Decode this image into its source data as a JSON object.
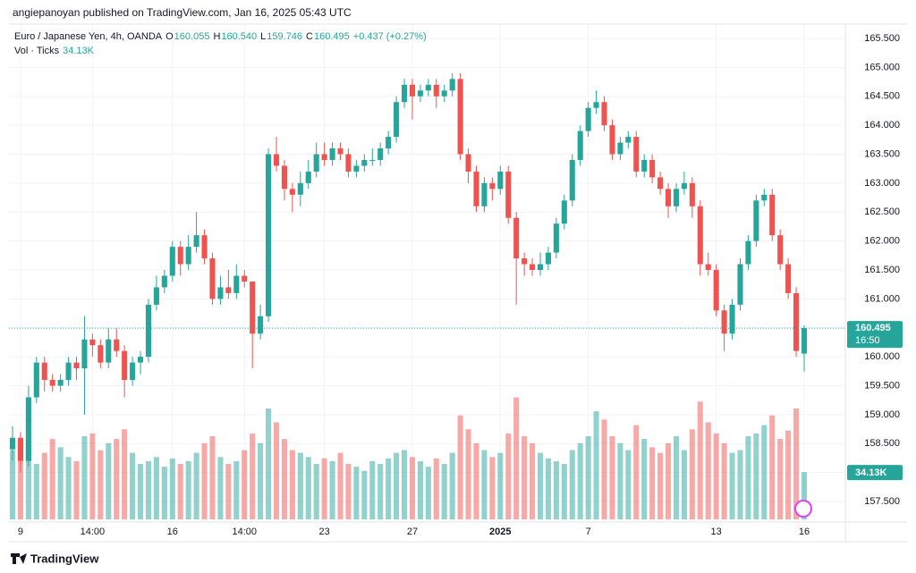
{
  "header": {
    "publisher": "angiepanoyan published on TradingView.com, Jan 16, 2025 05:43 UTC"
  },
  "footer": {
    "brand": "TradingView"
  },
  "legend": {
    "symbol": "Euro / Japanese Yen, 4h, OANDA",
    "fields": [
      {
        "key": "O",
        "text": "160.055"
      },
      {
        "key": "H",
        "text": "160.540"
      },
      {
        "key": "L",
        "text": "159.746"
      },
      {
        "key": "C",
        "text": "160.495"
      }
    ],
    "change": "+0.437 (+0.27%)",
    "volume_title": "Vol · Ticks",
    "volume_text": "34.13K"
  },
  "chart_data": {
    "type": "candlestick",
    "up_color": "#26a69a",
    "down_color": "#ef5350",
    "ylim": [
      157.5,
      165.5
    ],
    "yticks": [
      {
        "value": 157.5,
        "label": "157.500"
      },
      {
        "value": 158,
        "label": "158.000"
      },
      {
        "value": 158.5,
        "label": "158.500"
      },
      {
        "value": 159,
        "label": "159.000"
      },
      {
        "value": 159.5,
        "label": "159.500"
      },
      {
        "value": 160,
        "label": "160.000"
      },
      {
        "value": 160.5,
        "label": "160.500"
      },
      {
        "value": 161,
        "label": "161.000"
      },
      {
        "value": 161.5,
        "label": "161.500"
      },
      {
        "value": 162,
        "label": "162.000"
      },
      {
        "value": 162.5,
        "label": "162.500"
      },
      {
        "value": 163,
        "label": "163.000"
      },
      {
        "value": 163.5,
        "label": "163.500"
      },
      {
        "value": 164,
        "label": "164.000"
      },
      {
        "value": 164.5,
        "label": "164.500"
      },
      {
        "value": 165,
        "label": "165.000"
      },
      {
        "value": 165.5,
        "label": "165.500"
      }
    ],
    "grid": true,
    "countdown": "16:50",
    "volume_label": "34.13K",
    "categories": [
      null,
      "9",
      null,
      null,
      null,
      null,
      null,
      null,
      null,
      null,
      "14:00",
      null,
      null,
      null,
      null,
      null,
      null,
      null,
      null,
      null,
      "16",
      null,
      null,
      null,
      null,
      null,
      null,
      null,
      null,
      "14:00",
      null,
      null,
      null,
      null,
      null,
      null,
      null,
      null,
      null,
      "23",
      null,
      null,
      null,
      null,
      null,
      null,
      null,
      null,
      null,
      null,
      "27",
      null,
      null,
      null,
      null,
      null,
      null,
      null,
      null,
      null,
      null,
      "2025",
      null,
      null,
      null,
      null,
      null,
      null,
      null,
      null,
      null,
      null,
      "7",
      null,
      null,
      null,
      null,
      null,
      null,
      null,
      null,
      null,
      null,
      null,
      null,
      null,
      null,
      null,
      "13",
      null,
      null,
      null,
      null,
      null,
      null,
      null,
      null,
      null,
      null,
      "16"
    ],
    "candles": [
      [
        158.4,
        158.8,
        158.2,
        158.6
      ],
      [
        158.6,
        158.7,
        158.0,
        158.2
      ],
      [
        158.2,
        159.5,
        158.1,
        159.3
      ],
      [
        159.3,
        160.0,
        159.2,
        159.9
      ],
      [
        159.9,
        160.0,
        159.4,
        159.6
      ],
      [
        159.6,
        159.7,
        159.4,
        159.5
      ],
      [
        159.5,
        159.7,
        159.4,
        159.6
      ],
      [
        159.6,
        160.0,
        159.5,
        159.9
      ],
      [
        159.9,
        160.0,
        159.6,
        159.8
      ],
      [
        159.8,
        160.7,
        159.0,
        160.3
      ],
      [
        160.3,
        160.4,
        160.0,
        160.2
      ],
      [
        160.2,
        160.3,
        159.8,
        159.9
      ],
      [
        159.9,
        160.5,
        159.8,
        160.3
      ],
      [
        160.3,
        160.5,
        160.0,
        160.1
      ],
      [
        160.1,
        160.2,
        159.3,
        159.6
      ],
      [
        159.6,
        160.0,
        159.5,
        159.9
      ],
      [
        159.9,
        160.1,
        159.7,
        160.0
      ],
      [
        160.0,
        161.0,
        159.9,
        160.9
      ],
      [
        160.9,
        161.4,
        160.8,
        161.2
      ],
      [
        161.2,
        161.5,
        161.1,
        161.4
      ],
      [
        161.4,
        162.0,
        161.3,
        161.9
      ],
      [
        161.9,
        162.0,
        161.4,
        161.6
      ],
      [
        161.6,
        162.1,
        161.5,
        161.9
      ],
      [
        161.9,
        162.5,
        161.8,
        162.1
      ],
      [
        162.1,
        162.2,
        161.6,
        161.7
      ],
      [
        161.7,
        161.8,
        160.9,
        161.0
      ],
      [
        161.0,
        161.4,
        160.9,
        161.2
      ],
      [
        161.2,
        161.5,
        161.0,
        161.1
      ],
      [
        161.1,
        161.6,
        161.0,
        161.4
      ],
      [
        161.4,
        161.5,
        161.2,
        161.3
      ],
      [
        161.3,
        161.3,
        159.8,
        160.4
      ],
      [
        160.4,
        160.9,
        160.3,
        160.7
      ],
      [
        160.7,
        163.6,
        160.6,
        163.5
      ],
      [
        163.5,
        163.8,
        163.2,
        163.3
      ],
      [
        163.3,
        163.4,
        162.7,
        162.9
      ],
      [
        162.9,
        163.0,
        162.5,
        162.8
      ],
      [
        162.8,
        163.2,
        162.6,
        163.0
      ],
      [
        163.0,
        163.4,
        162.9,
        163.2
      ],
      [
        163.2,
        163.7,
        163.1,
        163.5
      ],
      [
        163.5,
        163.7,
        163.3,
        163.4
      ],
      [
        163.4,
        163.7,
        163.3,
        163.6
      ],
      [
        163.6,
        163.7,
        163.4,
        163.5
      ],
      [
        163.5,
        163.6,
        163.1,
        163.2
      ],
      [
        163.2,
        163.4,
        163.1,
        163.3
      ],
      [
        163.3,
        163.5,
        163.2,
        163.4
      ],
      [
        163.4,
        163.6,
        163.3,
        163.4
      ],
      [
        163.4,
        163.7,
        163.3,
        163.6
      ],
      [
        163.6,
        163.9,
        163.5,
        163.8
      ],
      [
        163.8,
        164.5,
        163.7,
        164.4
      ],
      [
        164.4,
        164.8,
        164.3,
        164.7
      ],
      [
        164.7,
        164.8,
        164.1,
        164.5
      ],
      [
        164.5,
        164.7,
        164.4,
        164.6
      ],
      [
        164.6,
        164.8,
        164.5,
        164.7
      ],
      [
        164.7,
        164.8,
        164.3,
        164.5
      ],
      [
        164.5,
        164.7,
        164.4,
        164.6
      ],
      [
        164.6,
        164.9,
        164.5,
        164.8
      ],
      [
        164.8,
        164.9,
        163.4,
        163.5
      ],
      [
        163.5,
        163.6,
        163.0,
        163.2
      ],
      [
        163.2,
        163.3,
        162.5,
        162.6
      ],
      [
        162.6,
        163.1,
        162.5,
        163.0
      ],
      [
        163.0,
        163.1,
        162.7,
        162.9
      ],
      [
        162.9,
        163.3,
        162.8,
        163.2
      ],
      [
        163.2,
        163.3,
        162.3,
        162.4
      ],
      [
        162.4,
        162.5,
        160.9,
        161.7
      ],
      [
        161.7,
        161.8,
        161.4,
        161.6
      ],
      [
        161.6,
        161.7,
        161.4,
        161.5
      ],
      [
        161.5,
        161.8,
        161.4,
        161.6
      ],
      [
        161.6,
        161.9,
        161.5,
        161.8
      ],
      [
        161.8,
        162.4,
        161.7,
        162.3
      ],
      [
        162.3,
        162.8,
        162.2,
        162.7
      ],
      [
        162.7,
        163.5,
        162.6,
        163.4
      ],
      [
        163.4,
        164.0,
        163.3,
        163.9
      ],
      [
        163.9,
        164.4,
        163.8,
        164.3
      ],
      [
        164.3,
        164.6,
        164.2,
        164.4
      ],
      [
        164.4,
        164.5,
        163.9,
        164.0
      ],
      [
        164.0,
        164.1,
        163.4,
        163.5
      ],
      [
        163.5,
        163.8,
        163.4,
        163.7
      ],
      [
        163.7,
        163.9,
        163.6,
        163.8
      ],
      [
        163.8,
        163.9,
        163.1,
        163.2
      ],
      [
        163.2,
        163.5,
        163.1,
        163.4
      ],
      [
        163.4,
        163.5,
        163.0,
        163.1
      ],
      [
        163.1,
        163.2,
        162.8,
        162.9
      ],
      [
        162.9,
        163.0,
        162.4,
        162.6
      ],
      [
        162.6,
        163.0,
        162.5,
        162.9
      ],
      [
        162.9,
        163.2,
        162.8,
        163.0
      ],
      [
        163.0,
        163.1,
        162.4,
        162.6
      ],
      [
        162.6,
        162.7,
        161.4,
        161.6
      ],
      [
        161.6,
        161.8,
        161.4,
        161.5
      ],
      [
        161.5,
        161.6,
        160.7,
        160.8
      ],
      [
        160.8,
        160.9,
        160.1,
        160.4
      ],
      [
        160.4,
        161.0,
        160.3,
        160.9
      ],
      [
        160.9,
        161.7,
        160.8,
        161.6
      ],
      [
        161.6,
        162.1,
        161.5,
        162.0
      ],
      [
        162.0,
        162.8,
        161.9,
        162.7
      ],
      [
        162.7,
        162.9,
        162.6,
        162.8
      ],
      [
        162.8,
        162.9,
        162.0,
        162.1
      ],
      [
        162.1,
        162.2,
        161.5,
        161.6
      ],
      [
        161.6,
        161.7,
        161.0,
        161.1
      ],
      [
        161.1,
        161.2,
        160.0,
        160.1
      ],
      [
        160.055,
        160.54,
        159.746,
        160.495
      ]
    ],
    "volume": [
      50,
      45,
      55,
      40,
      48,
      58,
      52,
      45,
      42,
      60,
      62,
      50,
      55,
      58,
      65,
      48,
      40,
      42,
      45,
      38,
      44,
      40,
      42,
      48,
      55,
      60,
      45,
      40,
      42,
      50,
      62,
      55,
      80,
      70,
      58,
      50,
      48,
      45,
      40,
      44,
      42,
      48,
      40,
      38,
      35,
      42,
      40,
      44,
      48,
      50,
      45,
      42,
      38,
      44,
      40,
      48,
      75,
      65,
      55,
      50,
      45,
      48,
      62,
      88,
      60,
      55,
      48,
      44,
      42,
      40,
      50,
      55,
      60,
      78,
      72,
      60,
      55,
      50,
      68,
      58,
      52,
      48,
      55,
      60,
      50,
      65,
      85,
      70,
      62,
      55,
      48,
      50,
      60,
      62,
      68,
      75,
      58,
      64,
      80,
      34.13
    ]
  }
}
